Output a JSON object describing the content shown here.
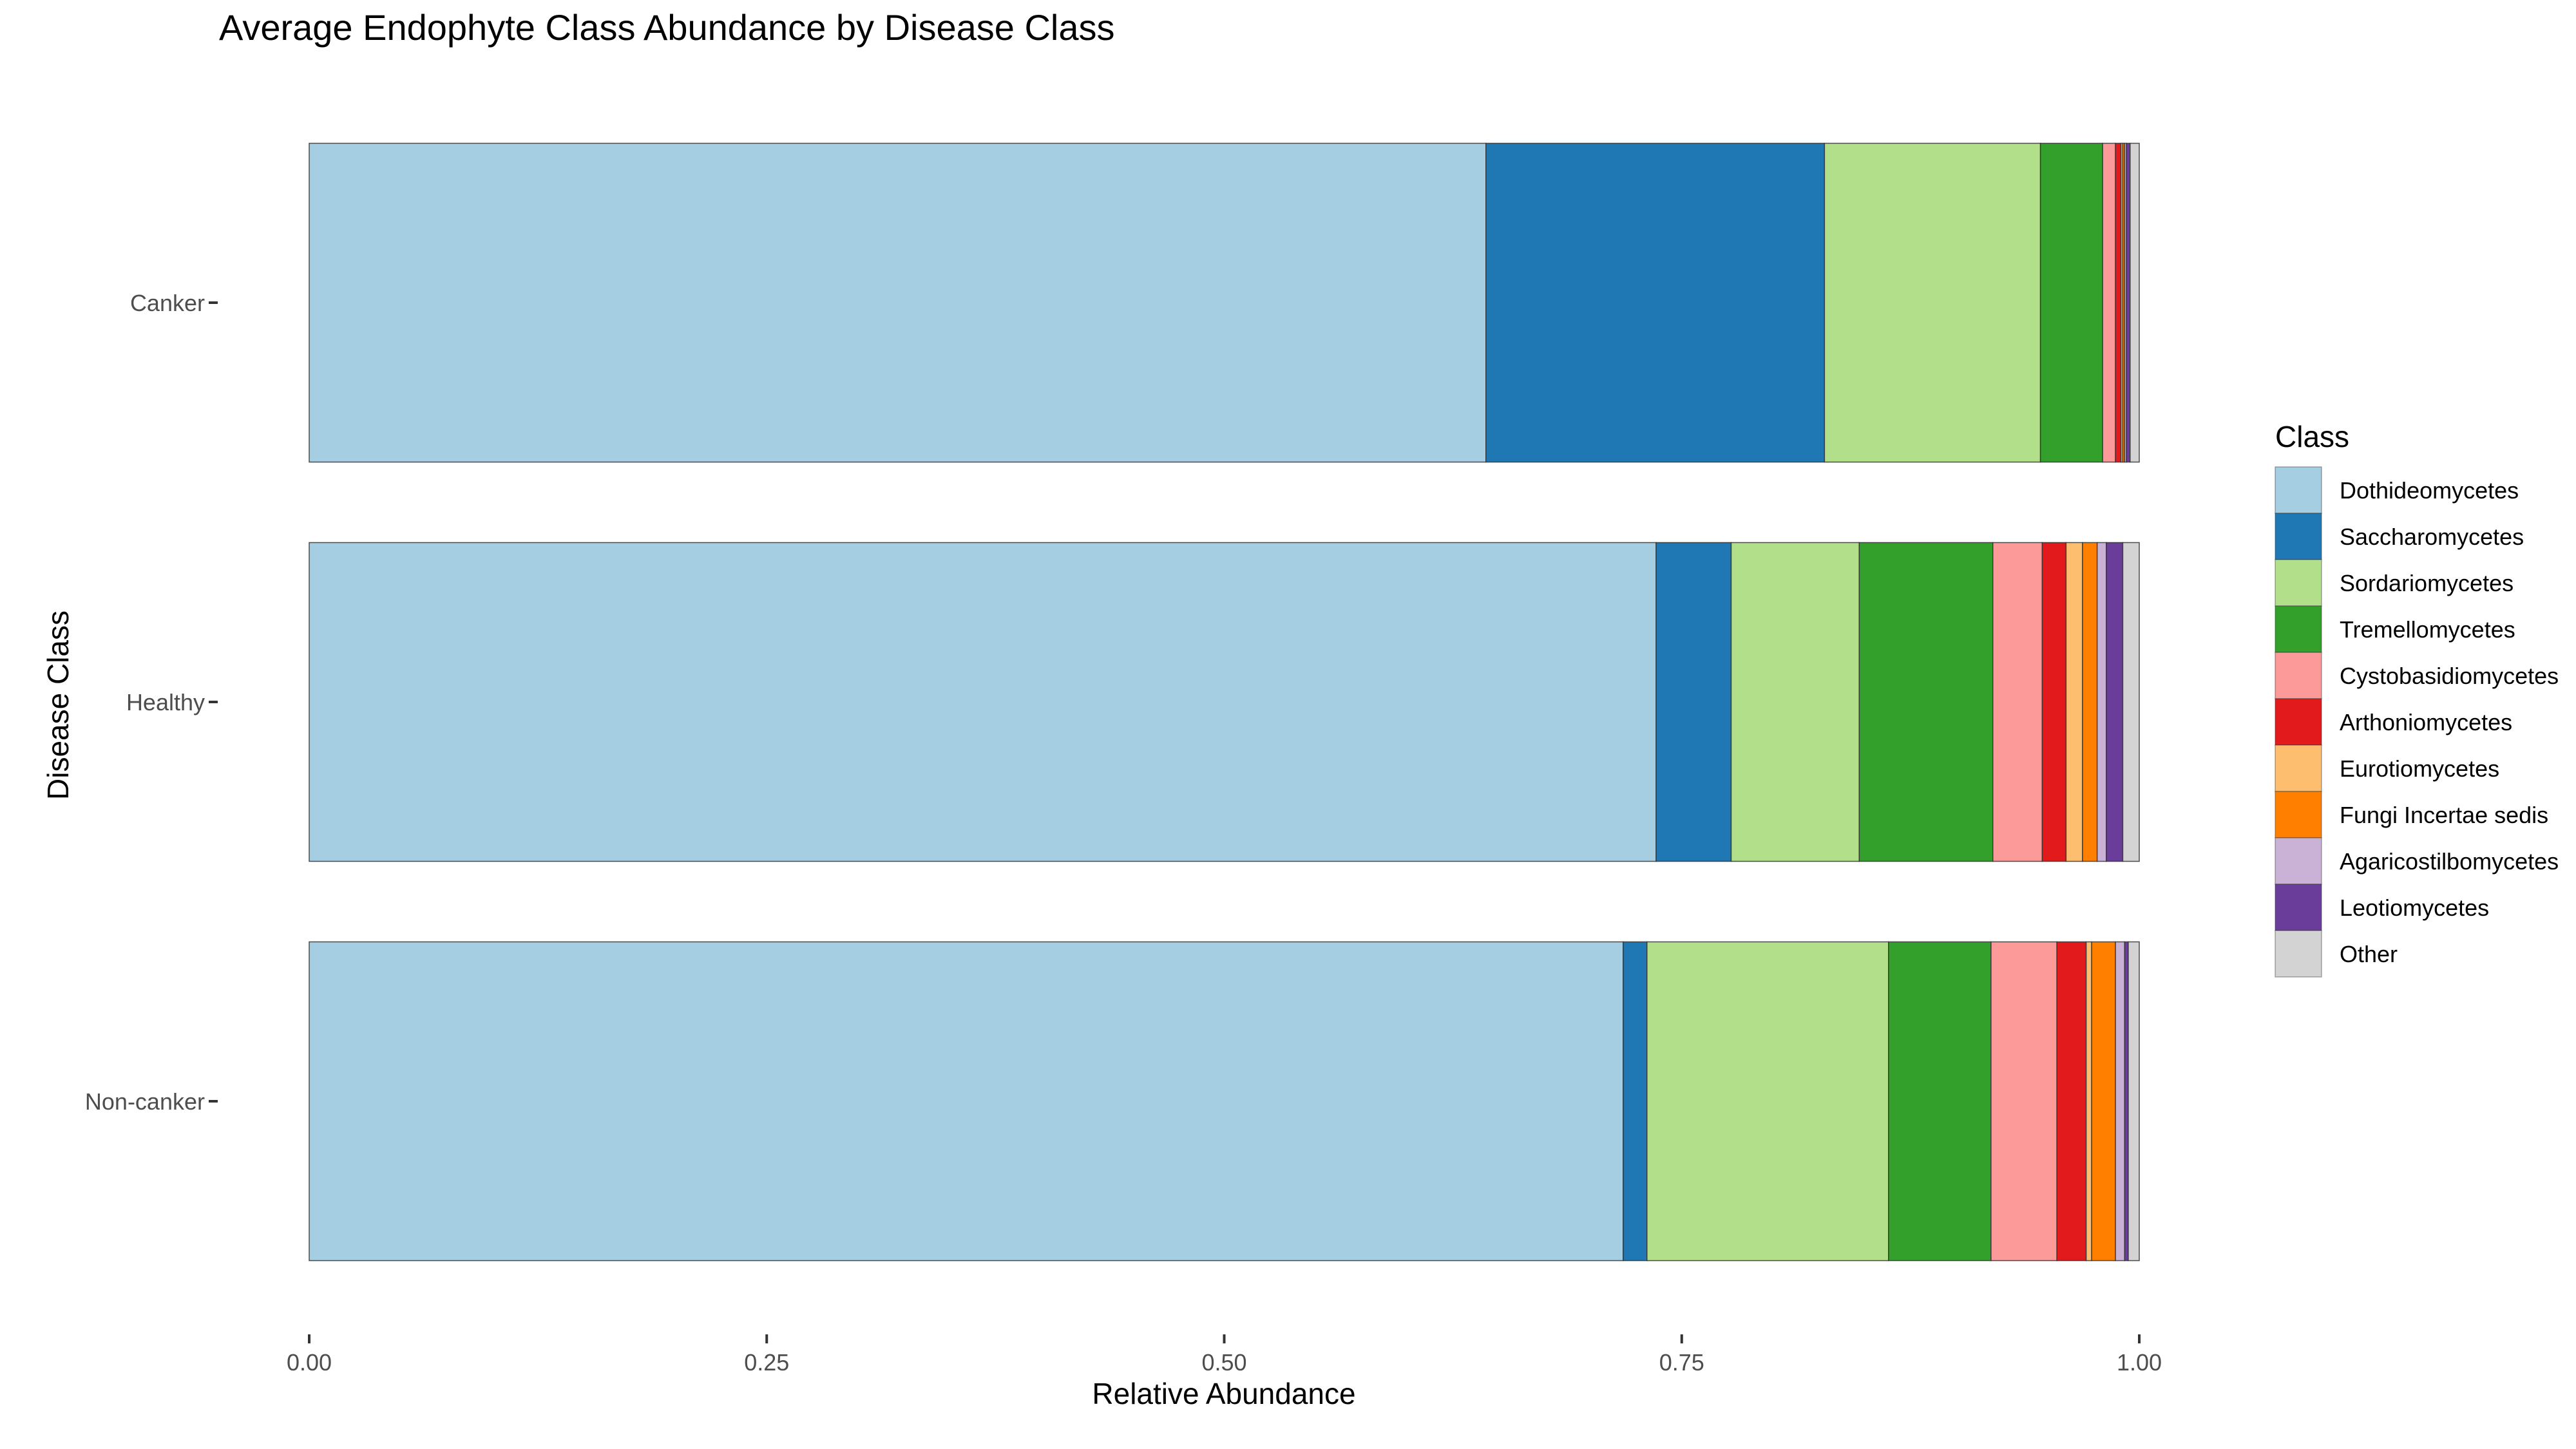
{
  "chart_data": {
    "type": "bar",
    "orientation": "horizontal",
    "stacked": true,
    "title": "Average Endophyte Class Abundance by Disease Class",
    "xlabel": "Relative Abundance",
    "ylabel": "Disease Class",
    "xlim": [
      0,
      1
    ],
    "xticks": [
      0,
      0.25,
      0.5,
      0.75,
      1
    ],
    "xtick_labels": [
      "0.00",
      "0.25",
      "0.50",
      "0.75",
      "1.00"
    ],
    "categories": [
      "Canker",
      "Healthy",
      "Non-canker"
    ],
    "grid": false,
    "legend": {
      "title": "Class",
      "position": "right"
    },
    "series": [
      {
        "name": "Dothideomycetes",
        "color": "#A6CEE3",
        "values": [
          0.643,
          0.736,
          0.718
        ]
      },
      {
        "name": "Saccharomycetes",
        "color": "#1F78B4",
        "values": [
          0.185,
          0.041,
          0.013
        ]
      },
      {
        "name": "Sordariomycetes",
        "color": "#B2DF8A",
        "values": [
          0.118,
          0.07,
          0.132
        ]
      },
      {
        "name": "Tremellomycetes",
        "color": "#33A02C",
        "values": [
          0.034,
          0.073,
          0.056
        ]
      },
      {
        "name": "Cystobasidiomycetes",
        "color": "#FB9A99",
        "values": [
          0.007,
          0.027,
          0.036
        ]
      },
      {
        "name": "Arthoniomycetes",
        "color": "#E31A1C",
        "values": [
          0.003,
          0.013,
          0.016
        ]
      },
      {
        "name": "Eurotiomycetes",
        "color": "#FDBF6F",
        "values": [
          0.001,
          0.009,
          0.003
        ]
      },
      {
        "name": "Fungi Incertae sedis",
        "color": "#FF7F00",
        "values": [
          0.001,
          0.008,
          0.013
        ]
      },
      {
        "name": "Agaricostilbomycetes",
        "color": "#CAB2D6",
        "values": [
          0.001,
          0.005,
          0.005
        ]
      },
      {
        "name": "Leotiomycetes",
        "color": "#6A3D9A",
        "values": [
          0.002,
          0.009,
          0.002
        ]
      },
      {
        "name": "Other",
        "color": "#D3D3D3",
        "values": [
          0.005,
          0.009,
          0.006
        ]
      }
    ]
  }
}
